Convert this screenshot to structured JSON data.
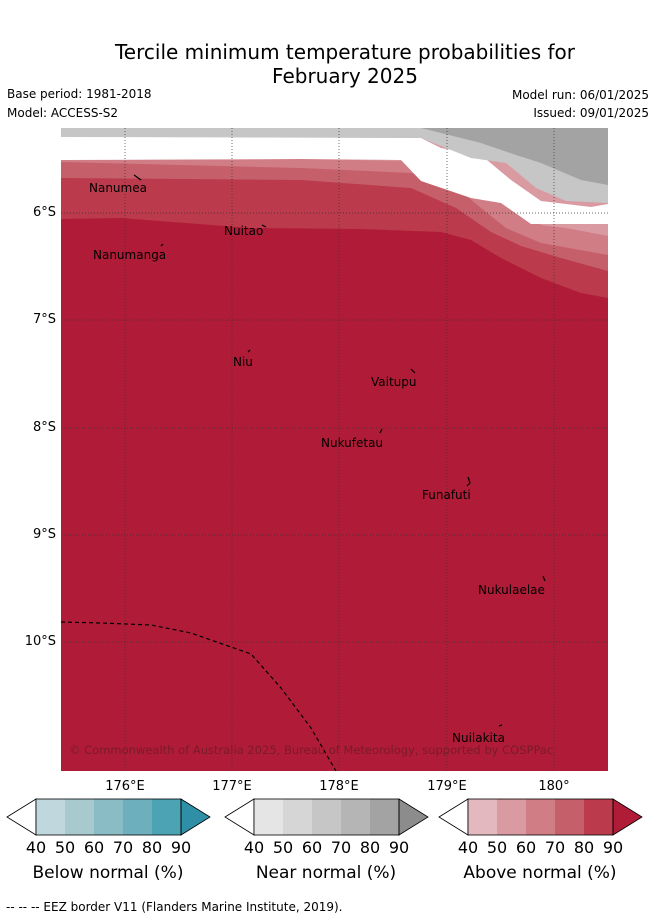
{
  "title": {
    "line1": "Tercile minimum temperature probabilities for",
    "line2": "February 2025"
  },
  "meta": {
    "base_period": "Base period: 1981-2018",
    "model": "Model: ACCESS-S2",
    "model_run": "Model run: 06/01/2025",
    "issued": "Issued: 09/01/2025"
  },
  "axes": {
    "latitudes": [
      "6°S",
      "7°S",
      "8°S",
      "9°S",
      "10°S"
    ],
    "longitudes": [
      "176°E",
      "177°E",
      "178°E",
      "179°E",
      "180°"
    ]
  },
  "places": [
    "Nanumea",
    "Nuitao",
    "Nanumanga",
    "Niu",
    "Vaitupu",
    "Nukufetau",
    "Funafuti",
    "Nukulaelae",
    "Nuilakita"
  ],
  "copyright": "© Commonwealth of Australia 2025, Bureau of Meteorology, supported by COSPPac",
  "colorbars": [
    {
      "title": "Below normal (%)",
      "ticks": [
        "40",
        "50",
        "60",
        "70",
        "80",
        "90"
      ],
      "colors": [
        "#c0d7dd",
        "#a8cace",
        "#8abcc6",
        "#6eafbe",
        "#4ca3b4",
        "#2e8fa6"
      ]
    },
    {
      "title": "Near normal (%)",
      "ticks": [
        "40",
        "50",
        "60",
        "70",
        "80",
        "90"
      ],
      "colors": [
        "#e5e5e5",
        "#d6d6d6",
        "#c6c6c6",
        "#b5b5b5",
        "#a3a3a3",
        "#8c8c8c"
      ]
    },
    {
      "title": "Above normal (%)",
      "ticks": [
        "40",
        "50",
        "60",
        "70",
        "80",
        "90"
      ],
      "colors": [
        "#e3b9bf",
        "#d99aa1",
        "#d07d86",
        "#c5606b",
        "#bb3a4b",
        "#b01c37"
      ]
    }
  ],
  "footnote": "--  --  -- EEZ border V11 (Flanders Marine Institute, 2019).",
  "colors": {
    "above_max": "#b01c37",
    "above_80": "#bb3a4b",
    "above_70": "#c5606b",
    "above_60": "#d07d86",
    "above_50": "#d99aa1",
    "near_50": "#c6c6c6",
    "near_60": "#a3a3a3"
  }
}
